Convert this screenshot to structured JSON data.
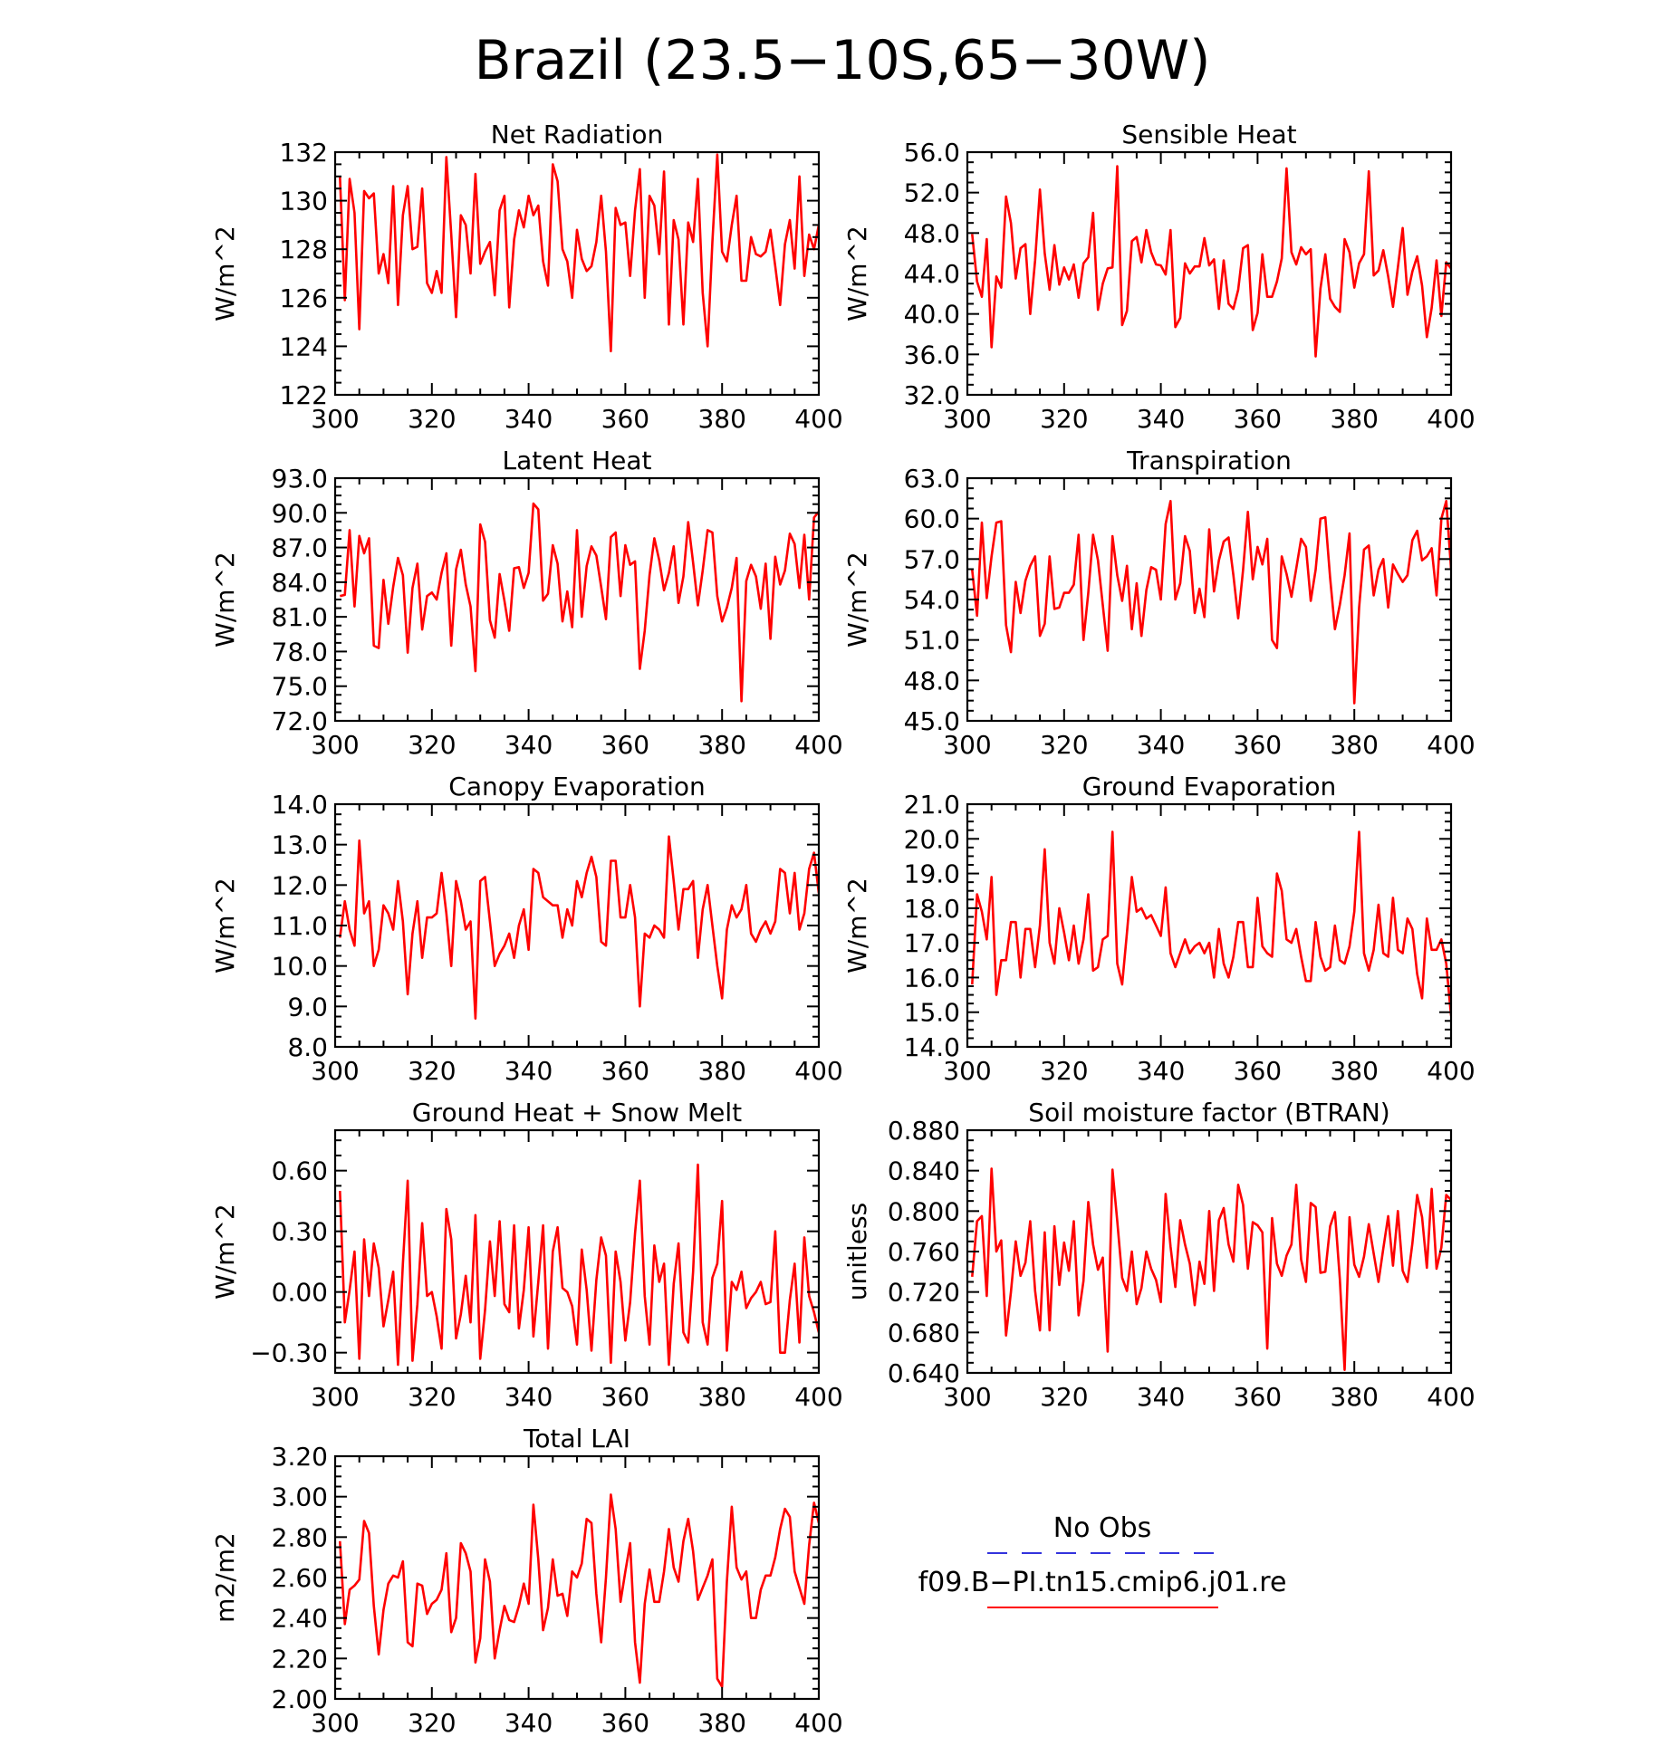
{
  "figure": {
    "title": "Brazil (23.5−10S,65−30W)"
  },
  "legend": {
    "entries": [
      {
        "label": "No Obs",
        "color": "#3333dd",
        "style": "dashed"
      },
      {
        "label": "f09.B−PI.tn15.cmip6.j01.re",
        "color": "#ff0000",
        "style": "solid"
      }
    ]
  },
  "colors": {
    "series": "#ff0000",
    "obs": "#3333dd",
    "axes": "#000000"
  },
  "chart_data": [
    {
      "id": "net-radiation",
      "type": "line",
      "title": "Net Radiation",
      "ylabel": "W/m^2",
      "xlim": [
        300,
        400
      ],
      "ylim": [
        122,
        132
      ],
      "xticks": [
        "300",
        "320",
        "340",
        "360",
        "380",
        "400"
      ],
      "yticks": [
        "122",
        "124",
        "126",
        "128",
        "130",
        "132"
      ],
      "yticks_at": [
        122,
        124,
        126,
        128,
        130,
        132
      ],
      "x_start": 301,
      "values": [
        131.0,
        125.9,
        130.9,
        129.5,
        124.7,
        130.4,
        130.1,
        130.3,
        127.0,
        127.8,
        126.6,
        130.6,
        125.7,
        129.4,
        130.6,
        128.0,
        128.1,
        130.5,
        126.6,
        126.2,
        127.1,
        126.2,
        131.8,
        128.6,
        125.2,
        129.4,
        129.0,
        127.0,
        131.1,
        127.4,
        127.9,
        128.3,
        126.1,
        129.6,
        130.2,
        125.6,
        128.4,
        129.6,
        128.9,
        130.2,
        129.4,
        129.8,
        127.5,
        126.5,
        131.5,
        130.8,
        128.0,
        127.5,
        126.0,
        128.8,
        127.6,
        127.1,
        127.3,
        128.3,
        130.2,
        127.9,
        123.8,
        129.7,
        129.0,
        129.1,
        126.9,
        129.6,
        131.3,
        126.0,
        130.2,
        129.8,
        127.8,
        131.2,
        124.9,
        129.2,
        128.4,
        124.9,
        129.1,
        128.3,
        130.9,
        126.2,
        124.0,
        128.3,
        131.9,
        127.9,
        127.5,
        129.0,
        130.2,
        126.7,
        126.7,
        128.5,
        127.8,
        127.7,
        127.9,
        128.8,
        127.3,
        125.7,
        128.2,
        129.2,
        127.2,
        131.0,
        126.9,
        128.6,
        128.0,
        129.0
      ]
    },
    {
      "id": "sensible-heat",
      "type": "line",
      "title": "Sensible Heat",
      "ylabel": "W/m^2",
      "xlim": [
        300,
        400
      ],
      "ylim": [
        32,
        56
      ],
      "xticks": [
        "300",
        "320",
        "340",
        "360",
        "380",
        "400"
      ],
      "yticks": [
        "32.0",
        "36.0",
        "40.0",
        "44.0",
        "48.0",
        "52.0",
        "56.0"
      ],
      "yticks_at": [
        32,
        36,
        40,
        44,
        48,
        52,
        56
      ],
      "x_start": 301,
      "values": [
        47.9,
        43.2,
        41.7,
        47.4,
        36.7,
        43.7,
        42.6,
        51.6,
        49.0,
        43.5,
        46.5,
        46.9,
        40.0,
        45.3,
        52.3,
        46.0,
        42.4,
        46.8,
        42.9,
        44.6,
        43.4,
        44.9,
        41.6,
        45.0,
        45.6,
        50.0,
        40.4,
        43.0,
        44.5,
        44.6,
        54.6,
        38.9,
        40.3,
        47.2,
        47.6,
        45.1,
        48.3,
        46.1,
        44.9,
        44.8,
        43.9,
        48.3,
        38.7,
        39.6,
        45.0,
        44.0,
        44.7,
        44.7,
        47.5,
        44.8,
        45.4,
        40.5,
        45.3,
        41.0,
        40.5,
        42.4,
        46.5,
        46.8,
        38.4,
        40.1,
        45.9,
        41.7,
        41.7,
        43.2,
        45.5,
        54.4,
        46.1,
        44.9,
        46.6,
        45.9,
        46.4,
        35.8,
        42.5,
        45.9,
        41.5,
        40.7,
        40.2,
        47.4,
        46.1,
        42.6,
        45.0,
        45.9,
        54.1,
        43.8,
        44.3,
        46.3,
        43.7,
        40.7,
        44.6,
        48.5,
        41.9,
        44.2,
        45.7,
        42.8,
        37.7,
        40.6,
        45.3,
        39.8,
        45.1,
        44.5
      ]
    },
    {
      "id": "latent-heat",
      "type": "line",
      "title": "Latent Heat",
      "ylabel": "W/m^2",
      "xlim": [
        300,
        400
      ],
      "ylim": [
        72,
        93
      ],
      "xticks": [
        "300",
        "320",
        "340",
        "360",
        "380",
        "400"
      ],
      "yticks": [
        "72.0",
        "75.0",
        "78.0",
        "81.0",
        "84.0",
        "87.0",
        "90.0",
        "93.0"
      ],
      "yticks_at": [
        72,
        75,
        78,
        81,
        84,
        87,
        90,
        93
      ],
      "x_start": 301,
      "values": [
        82.8,
        82.9,
        88.5,
        81.9,
        88.0,
        86.5,
        87.8,
        78.5,
        78.3,
        84.2,
        80.4,
        83.6,
        86.1,
        84.6,
        77.9,
        83.5,
        85.6,
        79.9,
        82.8,
        83.1,
        82.5,
        84.8,
        86.5,
        78.5,
        85.1,
        86.8,
        83.8,
        81.9,
        76.3,
        89.0,
        87.5,
        80.7,
        79.2,
        84.7,
        82.4,
        79.8,
        85.2,
        85.3,
        83.5,
        84.8,
        90.8,
        90.3,
        82.4,
        83.0,
        87.2,
        85.6,
        80.6,
        83.2,
        80.1,
        88.5,
        81.0,
        85.4,
        87.1,
        86.3,
        83.6,
        80.8,
        87.9,
        88.3,
        82.8,
        87.2,
        85.5,
        85.8,
        76.5,
        79.8,
        84.6,
        87.8,
        85.9,
        83.3,
        84.8,
        87.1,
        82.2,
        84.5,
        89.2,
        85.7,
        82.0,
        85.0,
        88.5,
        88.3,
        82.8,
        80.6,
        81.8,
        83.5,
        86.1,
        73.7,
        84.1,
        85.5,
        84.5,
        81.7,
        85.6,
        79.1,
        86.2,
        83.8,
        85.0,
        88.2,
        87.3,
        83.5,
        88.1,
        82.5,
        89.6,
        90.1
      ]
    },
    {
      "id": "transpiration",
      "type": "line",
      "title": "Transpiration",
      "ylabel": "W/m^2",
      "xlim": [
        300,
        400
      ],
      "ylim": [
        45,
        63
      ],
      "xticks": [
        "300",
        "320",
        "340",
        "360",
        "380",
        "400"
      ],
      "yticks": [
        "45.0",
        "48.0",
        "51.0",
        "54.0",
        "57.0",
        "60.0",
        "63.0"
      ],
      "yticks_at": [
        45,
        48,
        51,
        54,
        57,
        60,
        63
      ],
      "x_start": 301,
      "values": [
        56.2,
        52.8,
        59.7,
        54.1,
        57.2,
        59.7,
        59.8,
        52.1,
        50.1,
        55.3,
        53.0,
        55.4,
        56.5,
        57.2,
        51.3,
        52.2,
        57.2,
        53.3,
        53.4,
        54.5,
        54.5,
        55.1,
        58.8,
        51.0,
        54.5,
        58.8,
        56.9,
        53.6,
        50.2,
        58.7,
        55.8,
        53.9,
        56.5,
        51.8,
        55.2,
        51.3,
        54.7,
        56.4,
        56.2,
        54.0,
        59.6,
        61.3,
        54.0,
        55.2,
        58.7,
        57.6,
        53.0,
        54.8,
        52.7,
        59.2,
        54.6,
        56.9,
        58.3,
        58.6,
        55.8,
        52.6,
        56.2,
        60.5,
        55.5,
        57.9,
        56.6,
        58.5,
        51.0,
        50.4,
        57.2,
        55.9,
        54.2,
        56.3,
        58.5,
        57.9,
        53.9,
        56.2,
        60.0,
        60.1,
        55.6,
        51.8,
        53.6,
        55.8,
        58.9,
        46.3,
        53.4,
        57.7,
        58.0,
        54.3,
        56.2,
        57.0,
        53.4,
        56.6,
        55.9,
        55.3,
        55.8,
        58.4,
        59.1,
        56.9,
        57.2,
        57.8,
        54.3,
        60.0,
        61.3,
        56.3
      ]
    },
    {
      "id": "canopy-evaporation",
      "type": "line",
      "title": "Canopy Evaporation",
      "ylabel": "W/m^2",
      "xlim": [
        300,
        400
      ],
      "ylim": [
        8,
        14
      ],
      "xticks": [
        "300",
        "320",
        "340",
        "360",
        "380",
        "400"
      ],
      "yticks": [
        "8.0",
        "9.0",
        "10.0",
        "11.0",
        "12.0",
        "13.0",
        "14.0"
      ],
      "yticks_at": [
        8,
        9,
        10,
        11,
        12,
        13,
        14
      ],
      "x_start": 301,
      "values": [
        10.7,
        11.6,
        10.9,
        10.5,
        13.1,
        11.3,
        11.6,
        10.0,
        10.4,
        11.5,
        11.3,
        10.9,
        12.1,
        11.1,
        9.3,
        10.8,
        11.6,
        10.2,
        11.2,
        11.2,
        11.3,
        12.3,
        11.3,
        10.0,
        12.1,
        11.6,
        10.9,
        11.1,
        8.7,
        12.1,
        12.2,
        11.1,
        10.0,
        10.3,
        10.5,
        10.8,
        10.2,
        11.0,
        11.4,
        10.4,
        12.4,
        12.3,
        11.7,
        11.6,
        11.5,
        11.5,
        10.7,
        11.4,
        11.0,
        12.1,
        11.7,
        12.3,
        12.7,
        12.2,
        10.6,
        10.5,
        12.6,
        12.6,
        11.2,
        11.2,
        12.0,
        11.2,
        9.0,
        10.8,
        10.7,
        11.0,
        10.9,
        10.7,
        13.2,
        12.1,
        10.9,
        11.9,
        11.9,
        12.1,
        10.2,
        11.4,
        12.0,
        11.0,
        10.0,
        9.2,
        10.9,
        11.5,
        11.2,
        11.4,
        12.0,
        10.8,
        10.6,
        10.9,
        11.1,
        10.8,
        11.1,
        12.4,
        12.3,
        11.3,
        12.3,
        10.9,
        11.3,
        12.4,
        12.8,
        11.8
      ]
    },
    {
      "id": "ground-evaporation",
      "type": "line",
      "title": "Ground Evaporation",
      "ylabel": "W/m^2",
      "xlim": [
        300,
        400
      ],
      "ylim": [
        14,
        21
      ],
      "xticks": [
        "300",
        "320",
        "340",
        "360",
        "380",
        "400"
      ],
      "yticks": [
        "14.0",
        "15.0",
        "16.0",
        "17.0",
        "18.0",
        "19.0",
        "20.0",
        "21.0"
      ],
      "yticks_at": [
        14,
        15,
        16,
        17,
        18,
        19,
        20,
        21
      ],
      "x_start": 301,
      "values": [
        15.8,
        18.4,
        17.9,
        17.1,
        18.9,
        15.5,
        16.5,
        16.5,
        17.6,
        17.6,
        16.0,
        17.4,
        17.4,
        16.3,
        17.5,
        19.7,
        17.0,
        16.4,
        18.0,
        17.3,
        16.5,
        17.5,
        16.4,
        17.1,
        18.4,
        16.2,
        16.3,
        17.1,
        17.2,
        20.2,
        16.4,
        15.8,
        17.3,
        18.9,
        17.9,
        18.0,
        17.7,
        17.8,
        17.5,
        17.2,
        18.6,
        16.7,
        16.3,
        16.7,
        17.1,
        16.7,
        16.9,
        17.0,
        16.7,
        17.0,
        16.0,
        17.4,
        16.4,
        16.0,
        16.6,
        17.6,
        17.6,
        16.3,
        16.3,
        18.3,
        16.9,
        16.7,
        16.6,
        19.0,
        18.5,
        17.1,
        17.0,
        17.4,
        16.6,
        15.9,
        15.9,
        17.6,
        16.6,
        16.2,
        16.3,
        17.5,
        16.5,
        16.4,
        16.9,
        17.9,
        20.2,
        16.7,
        16.2,
        16.8,
        18.1,
        16.7,
        16.6,
        18.3,
        16.8,
        16.7,
        17.7,
        17.4,
        16.1,
        15.4,
        17.7,
        16.8,
        16.8,
        17.1,
        16.4,
        14.9
      ]
    },
    {
      "id": "ground-heat-snow-melt",
      "type": "line",
      "title": "Ground Heat + Snow Melt",
      "ylabel": "W/m^2",
      "xlim": [
        300,
        400
      ],
      "ylim": [
        -0.4,
        0.8
      ],
      "xticks": [
        "300",
        "320",
        "340",
        "360",
        "380",
        "400"
      ],
      "yticks": [
        "−0.30",
        "0.00",
        "0.30",
        "0.60"
      ],
      "yticks_at": [
        -0.3,
        0.0,
        0.3,
        0.6
      ],
      "x_start": 301,
      "values": [
        0.5,
        -0.15,
        0.01,
        0.2,
        -0.33,
        0.26,
        -0.02,
        0.24,
        0.12,
        -0.17,
        -0.04,
        0.1,
        -0.36,
        0.14,
        0.55,
        -0.34,
        -0.06,
        0.34,
        -0.02,
        0.0,
        -0.12,
        -0.28,
        0.41,
        0.26,
        -0.23,
        -0.11,
        0.08,
        -0.15,
        0.38,
        -0.33,
        -0.09,
        0.25,
        -0.02,
        0.35,
        -0.06,
        -0.1,
        0.33,
        -0.18,
        0.01,
        0.32,
        -0.22,
        0.05,
        0.33,
        -0.28,
        0.2,
        0.32,
        0.02,
        0.0,
        -0.07,
        -0.26,
        0.21,
        0.01,
        -0.29,
        0.06,
        0.27,
        0.18,
        -0.35,
        0.2,
        0.05,
        -0.24,
        -0.05,
        0.29,
        0.55,
        -0.02,
        -0.26,
        0.23,
        0.05,
        0.14,
        -0.36,
        0.04,
        0.24,
        -0.2,
        -0.25,
        0.1,
        0.63,
        -0.15,
        -0.26,
        0.07,
        0.14,
        0.45,
        -0.29,
        0.05,
        0.01,
        0.1,
        -0.08,
        -0.03,
        0.0,
        0.05,
        -0.06,
        -0.05,
        0.3,
        -0.3,
        -0.3,
        -0.04,
        0.14,
        -0.25,
        0.27,
        -0.02,
        -0.1,
        -0.2
      ]
    },
    {
      "id": "soil-moisture-factor",
      "type": "line",
      "title": "Soil moisture factor (BTRAN)",
      "ylabel": "unitless",
      "xlim": [
        300,
        400
      ],
      "ylim": [
        0.64,
        0.88
      ],
      "xticks": [
        "300",
        "320",
        "340",
        "360",
        "380",
        "400"
      ],
      "yticks": [
        "0.640",
        "0.680",
        "0.720",
        "0.760",
        "0.800",
        "0.840",
        "0.880"
      ],
      "yticks_at": [
        0.64,
        0.68,
        0.72,
        0.76,
        0.8,
        0.84,
        0.88
      ],
      "x_start": 301,
      "values": [
        0.735,
        0.79,
        0.795,
        0.716,
        0.842,
        0.76,
        0.771,
        0.677,
        0.72,
        0.77,
        0.736,
        0.749,
        0.79,
        0.721,
        0.682,
        0.779,
        0.682,
        0.785,
        0.727,
        0.769,
        0.741,
        0.79,
        0.697,
        0.731,
        0.809,
        0.767,
        0.742,
        0.754,
        0.661,
        0.841,
        0.79,
        0.734,
        0.721,
        0.76,
        0.708,
        0.724,
        0.76,
        0.743,
        0.732,
        0.71,
        0.817,
        0.765,
        0.725,
        0.791,
        0.767,
        0.748,
        0.707,
        0.75,
        0.728,
        0.8,
        0.721,
        0.791,
        0.803,
        0.767,
        0.75,
        0.826,
        0.806,
        0.743,
        0.789,
        0.786,
        0.779,
        0.664,
        0.793,
        0.748,
        0.736,
        0.756,
        0.767,
        0.826,
        0.752,
        0.73,
        0.808,
        0.804,
        0.739,
        0.74,
        0.785,
        0.799,
        0.733,
        0.643,
        0.794,
        0.747,
        0.735,
        0.755,
        0.787,
        0.758,
        0.73,
        0.763,
        0.795,
        0.746,
        0.8,
        0.741,
        0.73,
        0.768,
        0.816,
        0.794,
        0.744,
        0.822,
        0.743,
        0.764,
        0.816,
        0.811
      ]
    },
    {
      "id": "total-lai",
      "type": "line",
      "title": "Total LAI",
      "ylabel": "m2/m2",
      "xlim": [
        300,
        400
      ],
      "ylim": [
        2.0,
        3.2
      ],
      "xticks": [
        "300",
        "320",
        "340",
        "360",
        "380",
        "400"
      ],
      "yticks": [
        "2.00",
        "2.20",
        "2.40",
        "2.60",
        "2.80",
        "3.00",
        "3.20"
      ],
      "yticks_at": [
        2.0,
        2.2,
        2.4,
        2.6,
        2.8,
        3.0,
        3.2
      ],
      "x_start": 301,
      "values": [
        2.78,
        2.37,
        2.54,
        2.56,
        2.59,
        2.88,
        2.82,
        2.46,
        2.22,
        2.44,
        2.57,
        2.61,
        2.6,
        2.68,
        2.28,
        2.26,
        2.57,
        2.56,
        2.42,
        2.47,
        2.49,
        2.54,
        2.72,
        2.33,
        2.4,
        2.77,
        2.72,
        2.63,
        2.18,
        2.3,
        2.69,
        2.58,
        2.2,
        2.34,
        2.46,
        2.39,
        2.38,
        2.46,
        2.57,
        2.47,
        2.96,
        2.69,
        2.34,
        2.45,
        2.69,
        2.51,
        2.52,
        2.41,
        2.63,
        2.6,
        2.67,
        2.89,
        2.87,
        2.52,
        2.28,
        2.6,
        3.01,
        2.84,
        2.48,
        2.63,
        2.77,
        2.28,
        2.08,
        2.47,
        2.64,
        2.48,
        2.48,
        2.63,
        2.84,
        2.65,
        2.58,
        2.78,
        2.89,
        2.73,
        2.49,
        2.55,
        2.61,
        2.69,
        2.1,
        2.06,
        2.58,
        2.95,
        2.65,
        2.59,
        2.63,
        2.4,
        2.4,
        2.54,
        2.61,
        2.61,
        2.7,
        2.84,
        2.94,
        2.9,
        2.63,
        2.55,
        2.47,
        2.76,
        2.97,
        2.87
      ]
    }
  ]
}
